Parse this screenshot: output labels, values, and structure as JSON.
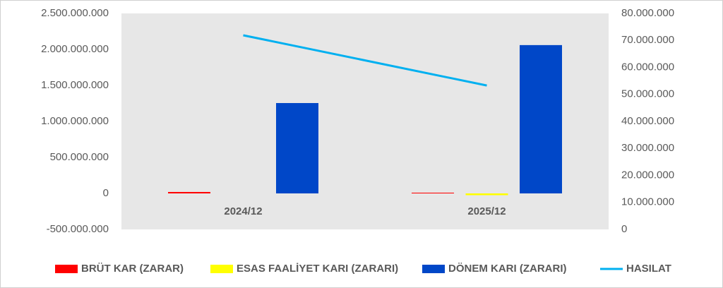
{
  "chart_data": {
    "type": "bar",
    "categories": [
      "2024/12",
      "2025/12"
    ],
    "series": [
      {
        "name": "BRÜT KAR (ZARAR)",
        "color": "#ff0000",
        "values": [
          20000000,
          10000000
        ]
      },
      {
        "name": "ESAS FAALİYET KARI (ZARARI)",
        "color": "#ffff00",
        "values": [
          0,
          -25000000
        ]
      },
      {
        "name": "DÖNEM KARI (ZARARI)",
        "color": "#0047c8",
        "values": [
          1255000000,
          2060000000
        ]
      },
      {
        "name": "HASILAT",
        "color": "#00b0f0",
        "type": "line",
        "axis": "y2",
        "values": [
          71900000,
          53300000
        ]
      }
    ],
    "ylim": [
      -500000000,
      2500000000
    ],
    "yticks": [
      {
        "value": -500000000,
        "label": "-500.000.000"
      },
      0,
      {
        "value": 500000000,
        "label": "500.000.000"
      },
      {
        "value": 1000000000,
        "label": "1.000.000.000"
      },
      {
        "value": 1500000000,
        "label": "1.500.000.000"
      },
      {
        "value": 2000000000,
        "label": "2.000.000.000"
      },
      {
        "value": 2500000000,
        "label": "2.500.000.000"
      }
    ],
    "y2lim": [
      0,
      80000000
    ],
    "y2ticks": [
      0,
      {
        "value": 10000000,
        "label": "10.000.000"
      },
      {
        "value": 20000000,
        "label": "20.000.000"
      },
      {
        "value": 30000000,
        "label": "30.000.000"
      },
      {
        "value": 40000000,
        "label": "40.000.000"
      },
      {
        "value": 50000000,
        "label": "50.000.000"
      },
      {
        "value": 60000000,
        "label": "60.000.000"
      },
      {
        "value": 70000000,
        "label": "70.000.000"
      },
      {
        "value": 80000000,
        "label": "80.000.000"
      }
    ],
    "grid": false,
    "legend": "bottom"
  }
}
